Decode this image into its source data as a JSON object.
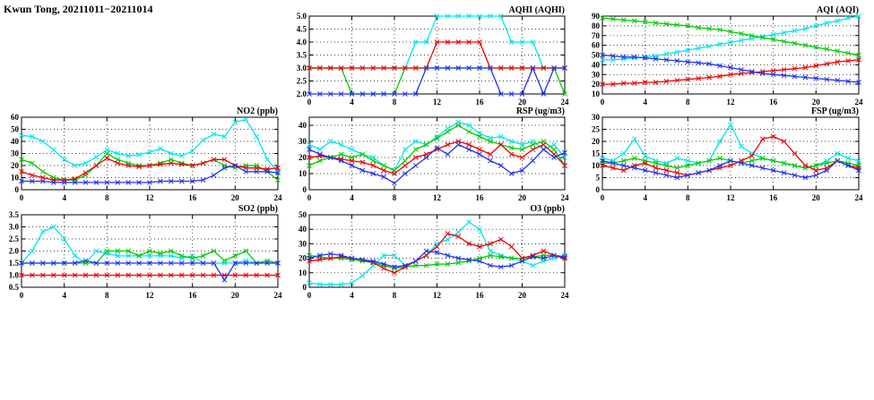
{
  "page": {
    "title": "Kwun Tong, 20211011−20211014"
  },
  "colors": {
    "series_cyan": "#00E5EE",
    "series_green": "#00CC00",
    "series_red": "#EE0000",
    "series_blue": "#2233EE"
  },
  "chart_data": [
    {
      "id": "aqhi",
      "type": "line",
      "title": "AQHI (AQHI)",
      "xlim": [
        0,
        24
      ],
      "xticks": [
        0,
        4,
        8,
        12,
        16,
        20,
        24
      ],
      "ylim": [
        2,
        5
      ],
      "yticks": [
        2,
        2.5,
        3,
        3.5,
        4,
        4.5,
        5
      ],
      "ytick_labels": [
        "2.0",
        "2.5",
        "3.0",
        "3.5",
        "4.0",
        "4.5",
        "5.0"
      ],
      "x_start": 0,
      "x_step": 1,
      "series": [
        {
          "name": "cyan",
          "color": "#00E5EE",
          "values": [
            3,
            3,
            3,
            3,
            3,
            3,
            3,
            3,
            3,
            3,
            4,
            4,
            5,
            5,
            5,
            5,
            5,
            5,
            5,
            4,
            4,
            4,
            3,
            3,
            3
          ]
        },
        {
          "name": "green",
          "color": "#00CC00",
          "values": [
            3,
            3,
            3,
            3,
            2,
            2,
            2,
            2,
            2,
            3,
            3,
            3,
            3,
            3,
            3,
            3,
            3,
            3,
            3,
            3,
            3,
            3,
            3,
            3,
            2
          ]
        },
        {
          "name": "red",
          "color": "#EE0000",
          "values": [
            3,
            3,
            3,
            3,
            3,
            3,
            3,
            3,
            3,
            3,
            3,
            3,
            4,
            4,
            4,
            4,
            4,
            3,
            3,
            3,
            3,
            3,
            3,
            3,
            3
          ]
        },
        {
          "name": "blue",
          "color": "#2233EE",
          "values": [
            2,
            2,
            2,
            2,
            2,
            2,
            2,
            2,
            2,
            2,
            2,
            3,
            3,
            3,
            3,
            3,
            3,
            3,
            2,
            2,
            2,
            3,
            2,
            3,
            3
          ]
        }
      ]
    },
    {
      "id": "aqi",
      "type": "line",
      "title": "AQI (AQI)",
      "xlim": [
        0,
        24
      ],
      "xticks": [
        0,
        4,
        8,
        12,
        16,
        20,
        24
      ],
      "ylim": [
        10,
        90
      ],
      "yticks": [
        10,
        20,
        30,
        40,
        50,
        60,
        70,
        80,
        90
      ],
      "x_start": 0,
      "x_step": 1,
      "series": [
        {
          "name": "cyan",
          "color": "#00E5EE",
          "values": [
            45,
            45,
            46,
            47,
            48,
            49,
            51,
            53,
            55,
            57,
            59,
            61,
            63,
            65,
            67,
            69,
            71,
            73,
            75,
            77,
            80,
            83,
            85,
            88,
            90
          ]
        },
        {
          "name": "green",
          "color": "#00CC00",
          "values": [
            88,
            87,
            86,
            85,
            84,
            83,
            82,
            81,
            80,
            78,
            77,
            76,
            74,
            72,
            70,
            68,
            66,
            64,
            62,
            60,
            58,
            56,
            54,
            52,
            50
          ]
        },
        {
          "name": "red",
          "color": "#EE0000",
          "values": [
            20,
            20,
            21,
            21,
            22,
            22,
            23,
            24,
            25,
            26,
            27,
            28,
            30,
            31,
            32,
            33,
            34,
            35,
            36,
            37,
            39,
            41,
            43,
            44,
            45
          ]
        },
        {
          "name": "blue",
          "color": "#2233EE",
          "values": [
            50,
            49,
            48,
            48,
            47,
            46,
            45,
            44,
            43,
            42,
            41,
            39,
            37,
            35,
            33,
            31,
            30,
            29,
            28,
            27,
            26,
            25,
            24,
            23,
            22
          ]
        }
      ]
    },
    {
      "id": "no2",
      "type": "line",
      "title": "NO2 (ppb)",
      "xlim": [
        0,
        24
      ],
      "xticks": [
        0,
        4,
        8,
        12,
        16,
        20,
        24
      ],
      "ylim": [
        0,
        60
      ],
      "yticks": [
        0,
        10,
        20,
        30,
        40,
        50,
        60
      ],
      "x_start": 0,
      "x_step": 1,
      "series": [
        {
          "name": "cyan",
          "color": "#00E5EE",
          "values": [
            45,
            44,
            40,
            33,
            25,
            20,
            22,
            27,
            33,
            30,
            28,
            29,
            31,
            34,
            30,
            28,
            32,
            41,
            46,
            44,
            56,
            58,
            44,
            25,
            15
          ]
        },
        {
          "name": "green",
          "color": "#00CC00",
          "values": [
            25,
            22,
            15,
            10,
            8,
            8,
            12,
            20,
            30,
            25,
            22,
            20,
            20,
            22,
            25,
            22,
            20,
            22,
            25,
            20,
            18,
            20,
            20,
            15,
            8
          ]
        },
        {
          "name": "red",
          "color": "#EE0000",
          "values": [
            15,
            12,
            10,
            8,
            8,
            9,
            14,
            20,
            26,
            22,
            20,
            19,
            20,
            21,
            22,
            21,
            20,
            22,
            25,
            25,
            20,
            18,
            18,
            17,
            18
          ]
        },
        {
          "name": "blue",
          "color": "#2233EE",
          "values": [
            7,
            7,
            7,
            6,
            6,
            6,
            6,
            6,
            6,
            6,
            6,
            6,
            6,
            7,
            7,
            7,
            7,
            8,
            12,
            18,
            20,
            15,
            15,
            15,
            14
          ]
        }
      ]
    },
    {
      "id": "rsp",
      "type": "line",
      "title": "RSP (ug/m3)",
      "xlim": [
        0,
        24
      ],
      "xticks": [
        0,
        4,
        8,
        12,
        16,
        20,
        24
      ],
      "ylim": [
        0,
        45
      ],
      "yticks": [
        0,
        10,
        20,
        30,
        40
      ],
      "x_start": 0,
      "x_step": 1,
      "series": [
        {
          "name": "cyan",
          "color": "#00E5EE",
          "values": [
            28,
            25,
            30,
            28,
            25,
            22,
            20,
            15,
            12,
            25,
            30,
            28,
            33,
            38,
            42,
            40,
            35,
            32,
            33,
            30,
            28,
            30,
            25,
            28,
            20
          ]
        },
        {
          "name": "green",
          "color": "#00CC00",
          "values": [
            15,
            18,
            20,
            22,
            20,
            22,
            18,
            15,
            12,
            18,
            25,
            28,
            32,
            36,
            40,
            36,
            33,
            30,
            28,
            26,
            25,
            28,
            30,
            25,
            15
          ]
        },
        {
          "name": "red",
          "color": "#EE0000",
          "values": [
            20,
            21,
            20,
            19,
            18,
            17,
            15,
            12,
            10,
            15,
            20,
            22,
            25,
            28,
            30,
            28,
            25,
            22,
            28,
            22,
            20,
            25,
            28,
            22,
            15
          ]
        },
        {
          "name": "blue",
          "color": "#2233EE",
          "values": [
            25,
            22,
            20,
            18,
            15,
            12,
            10,
            8,
            4,
            10,
            15,
            20,
            26,
            22,
            28,
            25,
            22,
            18,
            15,
            10,
            12,
            18,
            25,
            20,
            23
          ]
        }
      ]
    },
    {
      "id": "fsp",
      "type": "line",
      "title": "FSP (ug/m3)",
      "xlim": [
        0,
        24
      ],
      "xticks": [
        0,
        4,
        8,
        12,
        16,
        20,
        24
      ],
      "ylim": [
        0,
        30
      ],
      "yticks": [
        0,
        5,
        10,
        15,
        20,
        25,
        30
      ],
      "x_start": 0,
      "x_step": 1,
      "series": [
        {
          "name": "cyan",
          "color": "#00E5EE",
          "values": [
            13,
            12,
            15,
            21,
            14,
            12,
            11,
            13,
            12,
            11,
            12,
            20,
            27,
            18,
            15,
            13,
            12,
            11,
            10,
            9,
            10,
            12,
            15,
            13,
            12
          ]
        },
        {
          "name": "green",
          "color": "#00CC00",
          "values": [
            11,
            11,
            12,
            13,
            12,
            11,
            10,
            9,
            10,
            11,
            12,
            13,
            12,
            11,
            12,
            13,
            12,
            11,
            10,
            9,
            10,
            11,
            12,
            11,
            10
          ]
        },
        {
          "name": "red",
          "color": "#EE0000",
          "values": [
            10,
            9,
            8,
            10,
            11,
            9,
            8,
            7,
            6,
            7,
            8,
            9,
            10,
            12,
            14,
            21,
            22,
            20,
            15,
            10,
            8,
            9,
            12,
            10,
            9
          ]
        },
        {
          "name": "blue",
          "color": "#2233EE",
          "values": [
            12,
            11,
            10,
            9,
            8,
            7,
            6,
            5,
            6,
            7,
            8,
            10,
            12,
            11,
            10,
            9,
            8,
            7,
            6,
            5,
            6,
            8,
            12,
            10,
            8
          ]
        }
      ]
    },
    {
      "id": "so2",
      "type": "line",
      "title": "SO2 (ppb)",
      "xlim": [
        0,
        24
      ],
      "xticks": [
        0,
        4,
        8,
        12,
        16,
        20,
        24
      ],
      "ylim": [
        0.5,
        3.5
      ],
      "yticks": [
        0.5,
        1,
        1.5,
        2,
        2.5,
        3,
        3.5
      ],
      "ytick_labels": [
        "0.5",
        "1.0",
        "1.5",
        "2.0",
        "2.5",
        "3.0",
        "3.5"
      ],
      "x_start": 0,
      "x_step": 1,
      "series": [
        {
          "name": "cyan",
          "color": "#00E5EE",
          "values": [
            1.5,
            2.0,
            2.8,
            3.0,
            2.5,
            1.8,
            1.5,
            2.0,
            1.9,
            1.8,
            1.8,
            1.8,
            1.8,
            1.8,
            1.8,
            1.7,
            1.8,
            1.5,
            1.5,
            1.5,
            1.5,
            1.6,
            1.5,
            1.5,
            1.5
          ]
        },
        {
          "name": "green",
          "color": "#00CC00",
          "values": [
            1.5,
            1.5,
            1.5,
            1.5,
            1.5,
            1.5,
            1.5,
            1.5,
            2.0,
            2.0,
            2.0,
            1.8,
            2.0,
            1.9,
            2.0,
            1.8,
            1.7,
            1.8,
            2.0,
            1.6,
            1.8,
            2.0,
            1.5,
            1.6,
            1.5
          ]
        },
        {
          "name": "red",
          "color": "#EE0000",
          "values": [
            1.0,
            1.0,
            1.0,
            1.0,
            1.0,
            1.0,
            1.0,
            1.0,
            1.0,
            1.0,
            1.0,
            1.0,
            1.0,
            1.0,
            1.0,
            1.0,
            1.0,
            1.0,
            1.0,
            1.0,
            1.0,
            1.0,
            1.0,
            1.0,
            1.0
          ]
        },
        {
          "name": "blue",
          "color": "#2233EE",
          "values": [
            1.5,
            1.5,
            1.5,
            1.5,
            1.5,
            1.5,
            1.6,
            1.5,
            1.5,
            1.5,
            1.5,
            1.5,
            1.5,
            1.5,
            1.5,
            1.5,
            1.5,
            1.5,
            1.5,
            0.8,
            1.5,
            1.5,
            1.5,
            1.5,
            1.5
          ]
        }
      ]
    },
    {
      "id": "o3",
      "type": "line",
      "title": "O3 (ppb)",
      "xlim": [
        0,
        24
      ],
      "xticks": [
        0,
        4,
        8,
        12,
        16,
        20,
        24
      ],
      "ylim": [
        0,
        50
      ],
      "yticks": [
        0,
        10,
        20,
        30,
        40,
        50
      ],
      "x_start": 0,
      "x_step": 1,
      "series": [
        {
          "name": "cyan",
          "color": "#00E5EE",
          "values": [
            3,
            2,
            2,
            2,
            3,
            8,
            15,
            22,
            22,
            15,
            18,
            22,
            30,
            33,
            38,
            45,
            40,
            25,
            22,
            20,
            18,
            15,
            18,
            20,
            22
          ]
        },
        {
          "name": "green",
          "color": "#00CC00",
          "values": [
            22,
            21,
            20,
            20,
            19,
            18,
            17,
            15,
            13,
            14,
            15,
            15,
            16,
            16,
            17,
            18,
            20,
            22,
            21,
            20,
            20,
            21,
            22,
            22,
            21
          ]
        },
        {
          "name": "red",
          "color": "#EE0000",
          "values": [
            18,
            19,
            20,
            21,
            20,
            19,
            17,
            13,
            10,
            14,
            18,
            22,
            28,
            37,
            35,
            30,
            28,
            30,
            33,
            28,
            20,
            22,
            25,
            22,
            20
          ]
        },
        {
          "name": "blue",
          "color": "#2233EE",
          "values": [
            20,
            22,
            23,
            22,
            20,
            19,
            18,
            16,
            14,
            15,
            18,
            25,
            24,
            22,
            20,
            19,
            18,
            15,
            14,
            15,
            18,
            21,
            20,
            22,
            21
          ]
        }
      ]
    }
  ]
}
